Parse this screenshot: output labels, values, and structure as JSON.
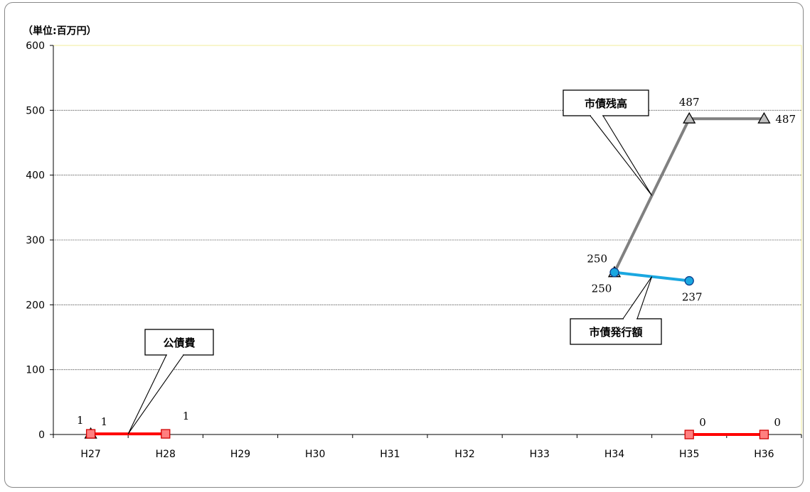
{
  "unit_label": "（単位:百万円）",
  "chart_data": {
    "type": "line",
    "categories": [
      "H27",
      "H28",
      "H29",
      "H30",
      "H31",
      "H32",
      "H33",
      "H34",
      "H35",
      "H36"
    ],
    "ylim": [
      0,
      600
    ],
    "yticks": [
      0,
      100,
      200,
      300,
      400,
      500,
      600
    ],
    "grid": true,
    "series": [
      {
        "name": "市債残高",
        "color": "#808080",
        "marker": "triangle",
        "points": [
          {
            "category": "H27",
            "value": 1,
            "label": "1",
            "label_pos": "upper-left"
          },
          {
            "category": "H34",
            "value": 250,
            "label": "250",
            "label_pos": "below-left"
          },
          {
            "category": "H35",
            "value": 487,
            "label": "487",
            "label_pos": "above"
          },
          {
            "category": "H36",
            "value": 487,
            "label": "487",
            "label_pos": "right"
          }
        ],
        "segments": [
          [
            1,
            2
          ],
          [
            2,
            3
          ]
        ]
      },
      {
        "name": "市債発行額",
        "color": "#1aa7e0",
        "marker": "circle",
        "points": [
          {
            "category": "H34",
            "value": 250,
            "label": "250",
            "label_pos": "upper-left"
          },
          {
            "category": "H35",
            "value": 237,
            "label": "237",
            "label_pos": "below-right"
          }
        ],
        "segments": [
          [
            0,
            1
          ]
        ]
      },
      {
        "name": "公債費",
        "color": "#ff0000",
        "marker": "square",
        "points": [
          {
            "category": "H27",
            "value": 1,
            "label": "1",
            "label_pos": "upper-right"
          },
          {
            "category": "H28",
            "value": 1,
            "label": "1",
            "label_pos": "upper-right-far"
          },
          {
            "category": "H35",
            "value": 0,
            "label": "0",
            "label_pos": "upper-right"
          },
          {
            "category": "H36",
            "value": 0,
            "label": "0",
            "label_pos": "upper-right"
          }
        ],
        "segments": [
          [
            0,
            1
          ],
          [
            2,
            3
          ]
        ]
      }
    ],
    "callouts": [
      {
        "text": "市債残高",
        "series": "市債残高"
      },
      {
        "text": "市債発行額",
        "series": "市債発行額"
      },
      {
        "text": "公債費",
        "series": "公債費"
      }
    ]
  }
}
